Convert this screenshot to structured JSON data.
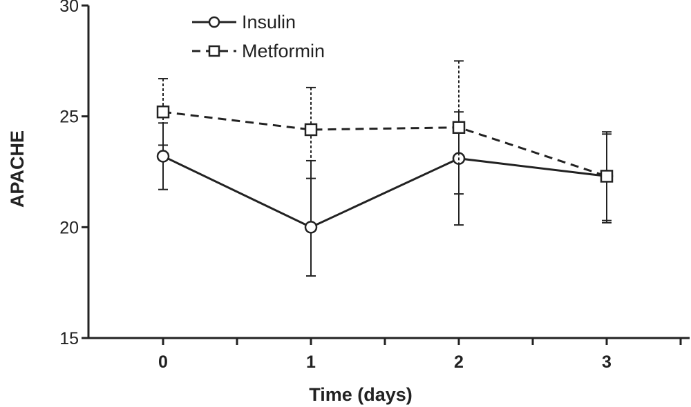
{
  "chart_data": {
    "type": "line",
    "title": "",
    "xlabel": "Time (days)",
    "ylabel": "APACHE",
    "x": [
      0,
      1,
      2,
      3
    ],
    "x_tick_labels": [
      "0",
      "1",
      "2",
      "3"
    ],
    "xlim": [
      -0.5,
      3.5
    ],
    "ylim": [
      15,
      30
    ],
    "y_ticks": [
      15,
      20,
      25,
      30
    ],
    "y_tick_labels": [
      "15",
      "20",
      "25",
      "30"
    ],
    "grid": false,
    "legend_position": "top-left",
    "series": [
      {
        "name": "Insulin",
        "marker": "circle",
        "line_style": "solid",
        "color": "#222222",
        "values": [
          23.2,
          20.0,
          23.1,
          22.3
        ],
        "error_low": [
          21.7,
          17.8,
          20.1,
          20.2
        ],
        "error_high": [
          24.7,
          23.0,
          25.2,
          24.3
        ]
      },
      {
        "name": "Metformin",
        "marker": "square",
        "line_style": "dashed",
        "color": "#222222",
        "values": [
          25.2,
          24.4,
          24.5,
          22.3
        ],
        "error_low": [
          23.7,
          22.2,
          21.5,
          20.3
        ],
        "error_high": [
          26.7,
          26.3,
          27.5,
          24.2
        ]
      }
    ]
  }
}
